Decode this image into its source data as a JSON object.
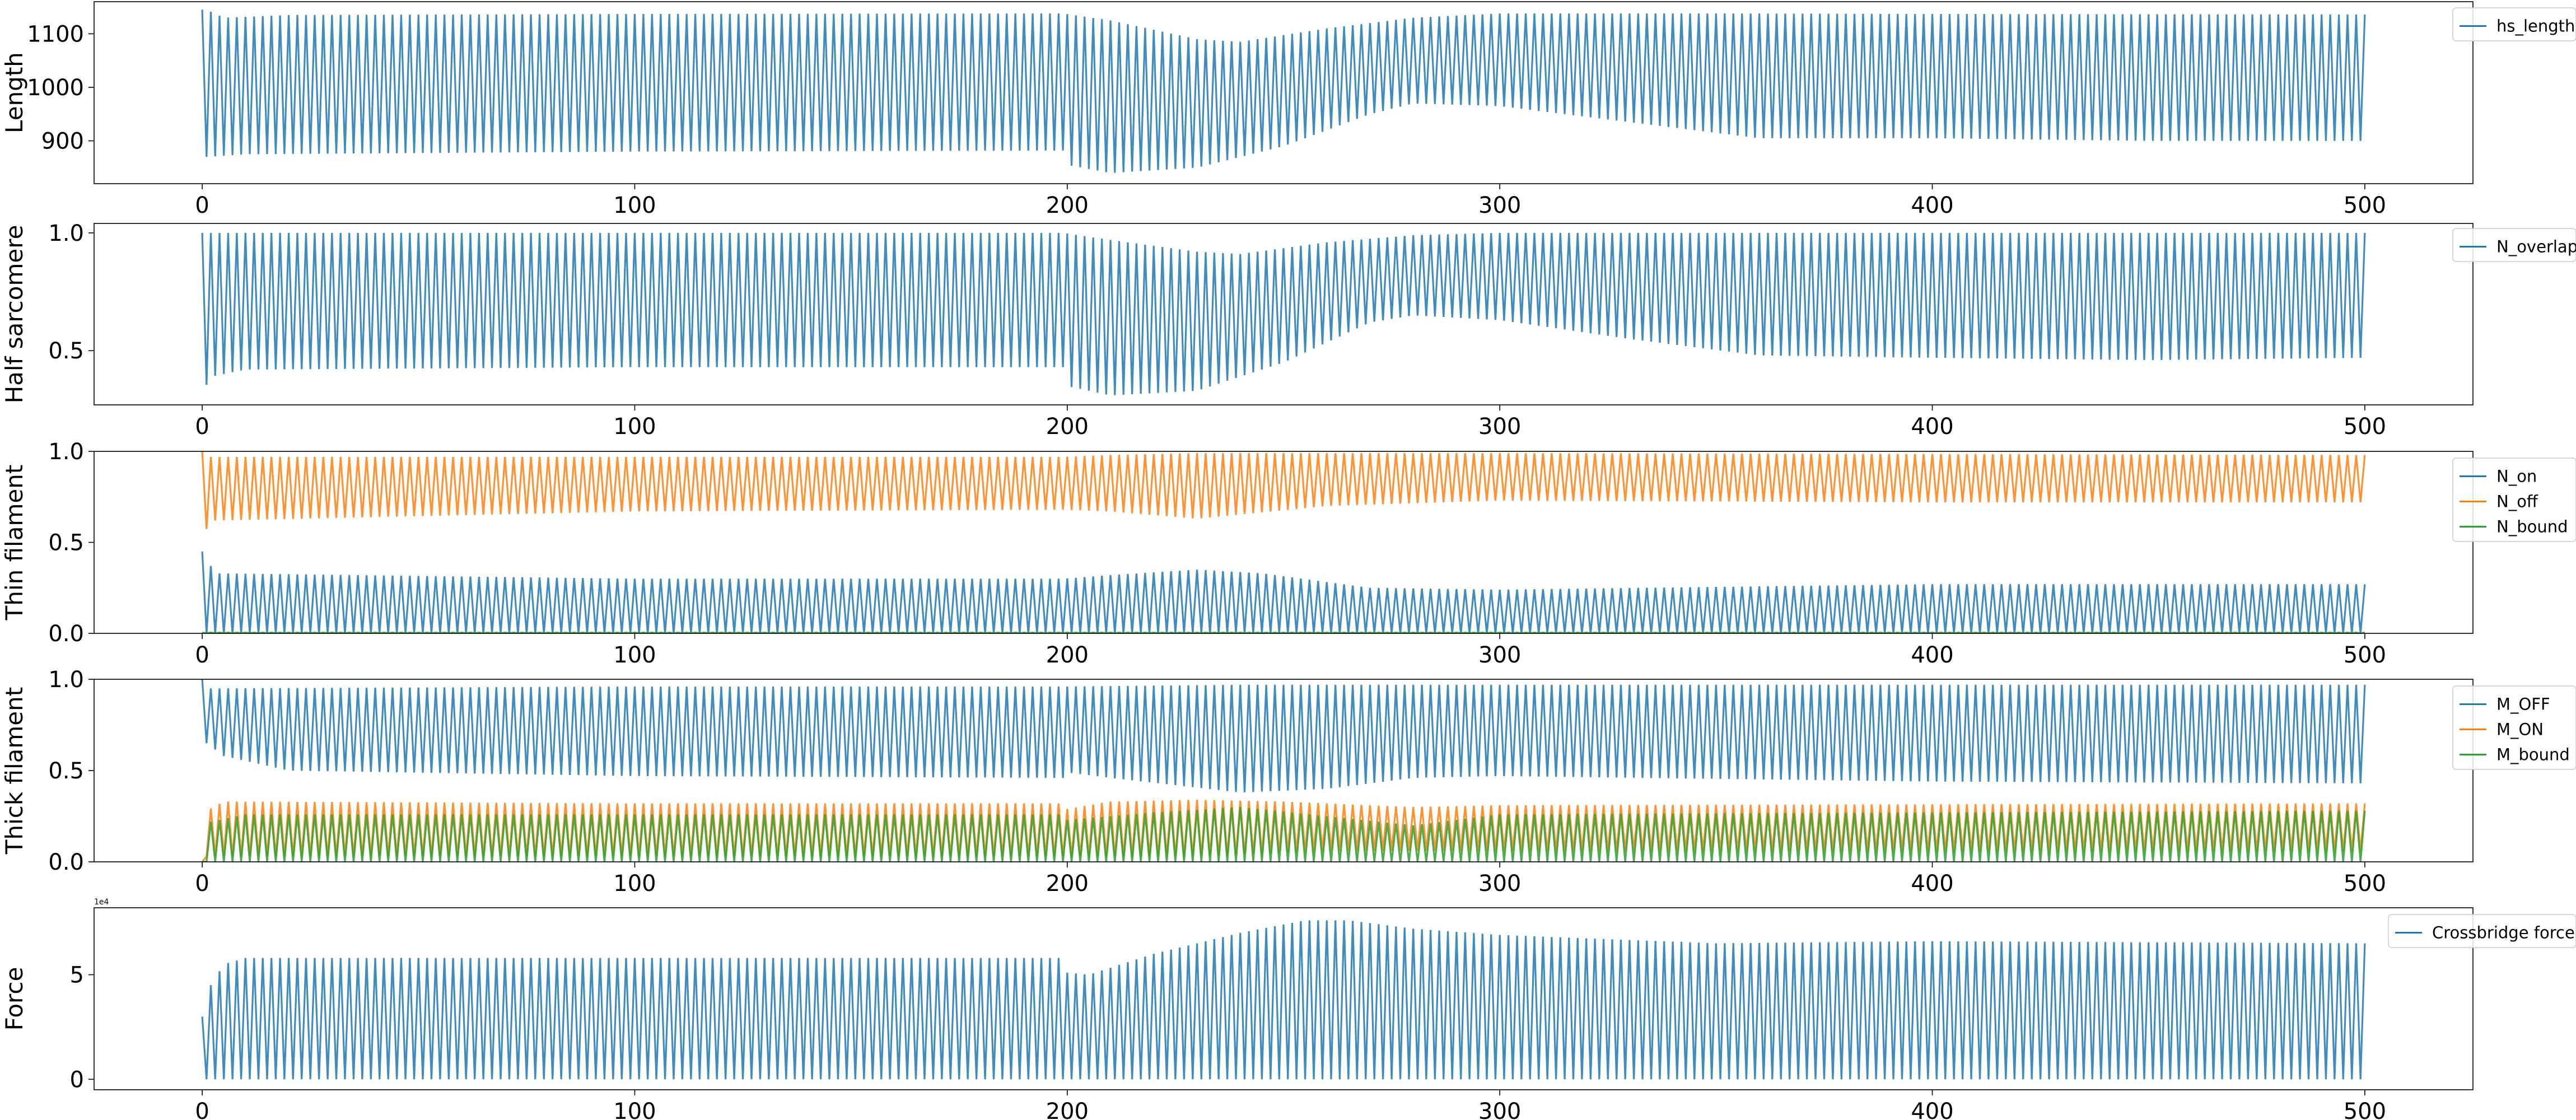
{
  "chart_data": [
    {
      "type": "line",
      "ylabel": "Length",
      "xlim": [
        -25,
        525
      ],
      "ylim": [
        820,
        1160
      ],
      "xticks": [
        "0",
        "100",
        "200",
        "300",
        "400",
        "500"
      ],
      "yticks": [
        "900",
        "1000",
        "1100"
      ],
      "grid": false,
      "legend_position": "top-right outside",
      "series": [
        {
          "name": "hs_length",
          "color": "#1f77b4",
          "oscillation_period": 2,
          "upper_envelope": [
            [
              0,
              1145
            ],
            [
              1,
              1145
            ],
            [
              5,
              1130
            ],
            [
              20,
              1135
            ],
            [
              100,
              1137
            ],
            [
              199,
              1138
            ],
            [
              210,
              1125
            ],
            [
              230,
              1090
            ],
            [
              240,
              1085
            ],
            [
              260,
              1110
            ],
            [
              280,
              1130
            ],
            [
              300,
              1138
            ],
            [
              350,
              1138
            ],
            [
              400,
              1137
            ],
            [
              500,
              1136
            ]
          ],
          "lower_envelope": [
            [
              0,
              840
            ],
            [
              1,
              870
            ],
            [
              10,
              875
            ],
            [
              100,
              880
            ],
            [
              199,
              882
            ],
            [
              200,
              855
            ],
            [
              210,
              840
            ],
            [
              230,
              850
            ],
            [
              250,
              890
            ],
            [
              270,
              950
            ],
            [
              280,
              970
            ],
            [
              300,
              965
            ],
            [
              330,
              935
            ],
            [
              360,
              905
            ],
            [
              400,
              905
            ],
            [
              450,
              900
            ],
            [
              500,
              900
            ]
          ]
        }
      ]
    },
    {
      "type": "line",
      "ylabel": "Half sarcomere",
      "xlim": [
        -25,
        525
      ],
      "ylim": [
        0.27,
        1.04
      ],
      "xticks": [
        "0",
        "100",
        "200",
        "300",
        "400",
        "500"
      ],
      "yticks": [
        "0.5",
        "1.0"
      ],
      "grid": false,
      "legend_position": "top-right outside",
      "series": [
        {
          "name": "N_overlap",
          "color": "#1f77b4",
          "oscillation_period": 2,
          "upper_envelope": [
            [
              0,
              1.0
            ],
            [
              100,
              1.0
            ],
            [
              199,
              1.0
            ],
            [
              210,
              0.97
            ],
            [
              230,
              0.92
            ],
            [
              240,
              0.91
            ],
            [
              260,
              0.96
            ],
            [
              280,
              0.99
            ],
            [
              300,
              1.0
            ],
            [
              500,
              1.0
            ]
          ],
          "lower_envelope": [
            [
              0,
              0.32
            ],
            [
              2,
              0.39
            ],
            [
              10,
              0.42
            ],
            [
              100,
              0.43
            ],
            [
              199,
              0.43
            ],
            [
              200,
              0.35
            ],
            [
              210,
              0.31
            ],
            [
              230,
              0.33
            ],
            [
              250,
              0.45
            ],
            [
              270,
              0.62
            ],
            [
              280,
              0.65
            ],
            [
              300,
              0.63
            ],
            [
              330,
              0.55
            ],
            [
              360,
              0.48
            ],
            [
              400,
              0.47
            ],
            [
              450,
              0.46
            ],
            [
              500,
              0.47
            ]
          ]
        }
      ]
    },
    {
      "type": "line",
      "ylabel": "Thin filament",
      "xlim": [
        -25,
        525
      ],
      "ylim": [
        0.0,
        1.0
      ],
      "xticks": [
        "0",
        "100",
        "200",
        "300",
        "400",
        "500"
      ],
      "yticks": [
        "0.0",
        "0.5",
        "1.0"
      ],
      "grid": false,
      "legend_position": "top-right outside",
      "series": [
        {
          "name": "N_on",
          "color": "#1f77b4",
          "oscillation_period": 2,
          "upper_envelope": [
            [
              0,
              0.45
            ],
            [
              3,
              0.33
            ],
            [
              100,
              0.3
            ],
            [
              199,
              0.3
            ],
            [
              210,
              0.32
            ],
            [
              230,
              0.35
            ],
            [
              245,
              0.33
            ],
            [
              270,
              0.25
            ],
            [
              300,
              0.24
            ],
            [
              400,
              0.27
            ],
            [
              500,
              0.27
            ]
          ],
          "lower_envelope": [
            [
              0,
              0.0
            ],
            [
              500,
              0.0
            ]
          ]
        },
        {
          "name": "N_off",
          "color": "#ff7f0e",
          "oscillation_period": 2,
          "upper_envelope": [
            [
              0,
              1.0
            ],
            [
              2,
              0.97
            ],
            [
              100,
              0.97
            ],
            [
              199,
              0.97
            ],
            [
              210,
              0.98
            ],
            [
              230,
              0.99
            ],
            [
              300,
              0.99
            ],
            [
              500,
              0.98
            ]
          ],
          "lower_envelope": [
            [
              0,
              0.55
            ],
            [
              3,
              0.62
            ],
            [
              100,
              0.67
            ],
            [
              199,
              0.68
            ],
            [
              210,
              0.67
            ],
            [
              230,
              0.63
            ],
            [
              260,
              0.7
            ],
            [
              300,
              0.73
            ],
            [
              400,
              0.72
            ],
            [
              500,
              0.72
            ]
          ]
        },
        {
          "name": "N_bound",
          "color": "#2ca02c",
          "oscillation_period": 2,
          "upper_envelope": [
            [
              0,
              0.005
            ],
            [
              500,
              0.005
            ]
          ],
          "lower_envelope": [
            [
              0,
              0.0
            ],
            [
              500,
              0.0
            ]
          ]
        }
      ]
    },
    {
      "type": "line",
      "ylabel": "Thick filament",
      "xlim": [
        -25,
        525
      ],
      "ylim": [
        0.0,
        1.0
      ],
      "xticks": [
        "0",
        "100",
        "200",
        "300",
        "400",
        "500"
      ],
      "yticks": [
        "0.0",
        "0.5",
        "1.0"
      ],
      "grid": false,
      "legend_position": "top-right outside",
      "series": [
        {
          "name": "M_OFF",
          "color": "#1f77b4",
          "oscillation_period": 2,
          "upper_envelope": [
            [
              0,
              1.0
            ],
            [
              1,
              0.95
            ],
            [
              100,
              0.96
            ],
            [
              199,
              0.96
            ],
            [
              240,
              0.97
            ],
            [
              300,
              0.97
            ],
            [
              500,
              0.97
            ]
          ],
          "lower_envelope": [
            [
              0,
              0.95
            ],
            [
              1,
              0.65
            ],
            [
              5,
              0.58
            ],
            [
              20,
              0.5
            ],
            [
              100,
              0.47
            ],
            [
              199,
              0.46
            ],
            [
              200,
              0.49
            ],
            [
              210,
              0.46
            ],
            [
              240,
              0.38
            ],
            [
              260,
              0.4
            ],
            [
              280,
              0.46
            ],
            [
              300,
              0.47
            ],
            [
              400,
              0.44
            ],
            [
              500,
              0.43
            ]
          ]
        },
        {
          "name": "M_ON",
          "color": "#ff7f0e",
          "oscillation_period": 2,
          "upper_envelope": [
            [
              0,
              0.0
            ],
            [
              1,
              0.28
            ],
            [
              5,
              0.33
            ],
            [
              100,
              0.32
            ],
            [
              199,
              0.32
            ],
            [
              200,
              0.29
            ],
            [
              210,
              0.33
            ],
            [
              230,
              0.34
            ],
            [
              250,
              0.33
            ],
            [
              280,
              0.3
            ],
            [
              300,
              0.31
            ],
            [
              500,
              0.32
            ]
          ],
          "lower_envelope": [
            [
              0,
              0.0
            ],
            [
              1,
              0.03
            ],
            [
              100,
              0.03
            ],
            [
              199,
              0.03
            ],
            [
              230,
              0.03
            ],
            [
              260,
              0.06
            ],
            [
              300,
              0.06
            ],
            [
              500,
              0.06
            ]
          ]
        },
        {
          "name": "M_bound",
          "color": "#2ca02c",
          "oscillation_period": 2,
          "upper_envelope": [
            [
              0,
              0.0
            ],
            [
              2,
              0.22
            ],
            [
              10,
              0.26
            ],
            [
              100,
              0.26
            ],
            [
              199,
              0.26
            ],
            [
              200,
              0.23
            ],
            [
              220,
              0.27
            ],
            [
              240,
              0.3
            ],
            [
              260,
              0.25
            ],
            [
              280,
              0.2
            ],
            [
              300,
              0.26
            ],
            [
              500,
              0.28
            ]
          ],
          "lower_envelope": [
            [
              0,
              0.0
            ],
            [
              500,
              0.0
            ]
          ]
        }
      ]
    },
    {
      "type": "line",
      "ylabel": "Force",
      "xlim": [
        -25,
        525
      ],
      "ylim": [
        -5000,
        82000
      ],
      "xticks": [
        "0",
        "100",
        "200",
        "300",
        "400",
        "500"
      ],
      "yticks": [
        "0",
        "5"
      ],
      "axis_offset_text": "1e4",
      "grid": false,
      "legend_position": "top-right outside",
      "series": [
        {
          "name": "Crossbridge force",
          "color": "#1f77b4",
          "oscillation_period": 2,
          "upper_envelope": [
            [
              0,
              30000
            ],
            [
              2,
              45000
            ],
            [
              5,
              55000
            ],
            [
              10,
              58000
            ],
            [
              100,
              58000
            ],
            [
              199,
              58000
            ],
            [
              200,
              51000
            ],
            [
              205,
              50000
            ],
            [
              220,
              60000
            ],
            [
              240,
              70000
            ],
            [
              255,
              76000
            ],
            [
              265,
              76000
            ],
            [
              280,
              72000
            ],
            [
              300,
              69000
            ],
            [
              350,
              65000
            ],
            [
              400,
              66000
            ],
            [
              500,
              65000
            ]
          ],
          "lower_envelope": [
            [
              0,
              0
            ],
            [
              500,
              0
            ]
          ]
        }
      ]
    }
  ]
}
